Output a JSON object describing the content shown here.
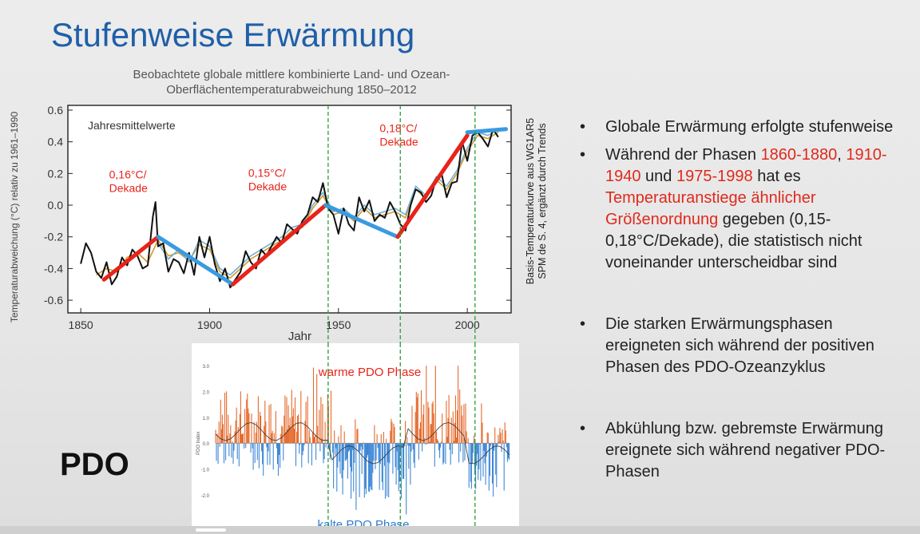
{
  "slide": {
    "title": "Stufenweise Erwärmung",
    "pdo_label": "PDO"
  },
  "bullets": {
    "b1": "Globale Erwärmung erfolgte stufenweise",
    "b2_pre": "Während der Phasen ",
    "b2_p1": "1860-1880",
    "b2_sep1": ", ",
    "b2_p2": "1910-1940",
    "b2_sep2": " und ",
    "b2_p3": "1975-1998",
    "b2_mid": " hat es ",
    "b2_hl": "Temperaturanstiege ähnlicher Größenordnung",
    "b2_post": " gegeben (0,15-0,18°C/Dekade), die statistisch nicht voneinander unterscheidbar sind",
    "b3": "Die starken Erwärmungsphasen ereigneten sich während der positiven Phasen des PDO-Ozeanzyklus",
    "b4": "Abkühlung bzw. gebremste Erwärmung ereignete sich während negativer PDO-Phasen"
  },
  "chart_data": [
    {
      "type": "line",
      "title": "Beobachtete globale mittlere kombinierte Land- und Ozean-\nOberflächentemperaturabweichung 1850–2012",
      "xlabel": "Jahr",
      "ylabel": "Temperaturabweichung (°C) relativ zu 1961–1990",
      "right_label": [
        "Basis-Temperaturkurve aus WG1AR5",
        "SPM de S. 4, ergänzt durch Trends"
      ],
      "inner_label": "Jahresmittelwerte",
      "xlim": [
        1845,
        2017
      ],
      "ylim": [
        -0.68,
        0.63
      ],
      "xticks": [
        1850,
        1900,
        1950,
        2000
      ],
      "yticks": [
        -0.6,
        -0.4,
        -0.2,
        0.0,
        0.2,
        0.4,
        0.6
      ],
      "ytick_labels": [
        "-0.6",
        "-0.4",
        "-0.2",
        "0.0",
        "0.2",
        "0.4",
        "0.6"
      ],
      "series": [
        {
          "color": "#111111",
          "x": [
            1850,
            1852,
            1854,
            1856,
            1858,
            1860,
            1862,
            1864,
            1866,
            1868,
            1870,
            1872,
            1874,
            1876,
            1878,
            1879,
            1880,
            1882,
            1884,
            1886,
            1888,
            1890,
            1892,
            1894,
            1896,
            1898,
            1900,
            1902,
            1904,
            1906,
            1908,
            1910,
            1912,
            1914,
            1916,
            1918,
            1920,
            1922,
            1924,
            1926,
            1928,
            1930,
            1932,
            1934,
            1936,
            1938,
            1940,
            1942,
            1944,
            1946,
            1948,
            1950,
            1952,
            1954,
            1956,
            1958,
            1960,
            1962,
            1964,
            1966,
            1968,
            1970,
            1972,
            1974,
            1976,
            1978,
            1980,
            1982,
            1984,
            1986,
            1988,
            1990,
            1992,
            1994,
            1996,
            1998,
            2000,
            2002,
            2004,
            2006,
            2008,
            2010,
            2012
          ],
          "y": [
            -0.37,
            -0.24,
            -0.3,
            -0.42,
            -0.46,
            -0.36,
            -0.5,
            -0.45,
            -0.33,
            -0.38,
            -0.28,
            -0.32,
            -0.4,
            -0.38,
            -0.07,
            0.02,
            -0.26,
            -0.24,
            -0.42,
            -0.34,
            -0.36,
            -0.43,
            -0.3,
            -0.44,
            -0.2,
            -0.33,
            -0.2,
            -0.37,
            -0.48,
            -0.4,
            -0.52,
            -0.47,
            -0.42,
            -0.29,
            -0.36,
            -0.4,
            -0.28,
            -0.32,
            -0.26,
            -0.2,
            -0.24,
            -0.12,
            -0.15,
            -0.18,
            -0.1,
            -0.06,
            0.05,
            0.02,
            0.14,
            -0.02,
            -0.06,
            -0.18,
            -0.02,
            -0.12,
            -0.16,
            0.05,
            -0.04,
            0.03,
            -0.1,
            -0.06,
            -0.08,
            0.02,
            -0.04,
            -0.12,
            -0.16,
            0.0,
            0.1,
            0.08,
            0.02,
            0.06,
            0.17,
            0.2,
            0.05,
            0.14,
            0.15,
            0.4,
            0.28,
            0.44,
            0.46,
            0.42,
            0.37,
            0.48,
            0.43
          ]
        },
        {
          "color": "#d49a2c",
          "x": [
            1856,
            1860,
            1864,
            1868,
            1872,
            1876,
            1880,
            1884,
            1888,
            1892,
            1896,
            1900,
            1904,
            1908,
            1912,
            1916,
            1920,
            1924,
            1928,
            1932,
            1936,
            1940,
            1944,
            1948,
            1952,
            1956,
            1960,
            1964,
            1968,
            1972,
            1976,
            1980,
            1984,
            1988,
            1992,
            1996,
            2000,
            2004,
            2008,
            2012
          ],
          "y": [
            -0.44,
            -0.4,
            -0.42,
            -0.33,
            -0.3,
            -0.36,
            -0.22,
            -0.32,
            -0.3,
            -0.35,
            -0.25,
            -0.28,
            -0.42,
            -0.46,
            -0.4,
            -0.34,
            -0.3,
            -0.26,
            -0.22,
            -0.16,
            -0.14,
            -0.02,
            0.06,
            -0.06,
            -0.04,
            -0.1,
            -0.02,
            -0.08,
            -0.06,
            -0.04,
            -0.08,
            0.1,
            0.04,
            0.16,
            0.1,
            0.2,
            0.34,
            0.44,
            0.42,
            0.46
          ]
        },
        {
          "color": "#6fb0d8",
          "x": [
            1880,
            1884,
            1888,
            1892,
            1896,
            1900,
            1904,
            1908,
            1912,
            1916,
            1920,
            1924,
            1928,
            1932,
            1936,
            1940,
            1944,
            1948,
            1952,
            1956,
            1960,
            1964,
            1968,
            1972,
            1976,
            1980,
            1984,
            1988,
            1992,
            1996,
            2000,
            2004,
            2008,
            2012
          ],
          "y": [
            -0.24,
            -0.34,
            -0.28,
            -0.36,
            -0.22,
            -0.26,
            -0.4,
            -0.44,
            -0.38,
            -0.32,
            -0.28,
            -0.24,
            -0.2,
            -0.14,
            -0.12,
            0.0,
            0.08,
            -0.04,
            -0.02,
            -0.08,
            0.0,
            -0.06,
            -0.04,
            -0.02,
            -0.06,
            0.12,
            0.06,
            0.18,
            0.12,
            0.22,
            0.36,
            0.46,
            0.44,
            0.48
          ]
        }
      ],
      "trends": [
        {
          "color": "#e8231a",
          "x": [
            1859,
            1880
          ],
          "y": [
            -0.47,
            -0.2
          ]
        },
        {
          "color": "#3a9ae0",
          "x": [
            1880,
            1909
          ],
          "y": [
            -0.2,
            -0.5
          ]
        },
        {
          "color": "#e8231a",
          "x": [
            1909,
            1945
          ],
          "y": [
            -0.5,
            0.0
          ]
        },
        {
          "color": "#3a9ae0",
          "x": [
            1945,
            1973
          ],
          "y": [
            0.0,
            -0.2
          ]
        },
        {
          "color": "#e8231a",
          "x": [
            1973,
            2000
          ],
          "y": [
            -0.2,
            0.44
          ]
        },
        {
          "color": "#3a9ae0",
          "x": [
            2000,
            2015
          ],
          "y": [
            0.46,
            0.48
          ]
        }
      ],
      "annotations": [
        {
          "text": [
            "0,16°C/",
            "Dekade"
          ],
          "x": 1861,
          "y": 0.17,
          "color": "#e8231a"
        },
        {
          "text": [
            "0,15°C/",
            "Dekade"
          ],
          "x": 1915,
          "y": 0.18,
          "color": "#e8231a"
        },
        {
          "text": [
            "0,18°C/",
            "Dekade"
          ],
          "x": 1966,
          "y": 0.46,
          "color": "#e8231a"
        }
      ],
      "phase_lines": [
        1946,
        1974,
        2003
      ]
    },
    {
      "type": "bar",
      "ylabel": "PDO Index",
      "yticks": [
        3.0,
        2.0,
        1.0,
        0.0,
        -1.0,
        -2.0
      ],
      "ytick_labels": [
        "3.0",
        "2.0",
        "1.0",
        "0.0",
        "-1.0",
        "-2.0"
      ],
      "ylim": [
        -3.3,
        3.5
      ],
      "xlim": [
        1900,
        2016
      ],
      "annotations": [
        {
          "text": "warme PDO Phase",
          "color": "#e8231a"
        },
        {
          "text": "kalte PDO Phase",
          "color": "#2a7bd1"
        }
      ],
      "colors": {
        "positive": "#e35a17",
        "negative": "#2a7bd1"
      },
      "phases": [
        {
          "from": 1900,
          "to": 1946,
          "sign": "positive"
        },
        {
          "from": 1946,
          "to": 1976,
          "sign": "negative"
        },
        {
          "from": 1976,
          "to": 1999,
          "sign": "positive"
        },
        {
          "from": 1999,
          "to": 2016,
          "sign": "negative"
        }
      ]
    }
  ]
}
